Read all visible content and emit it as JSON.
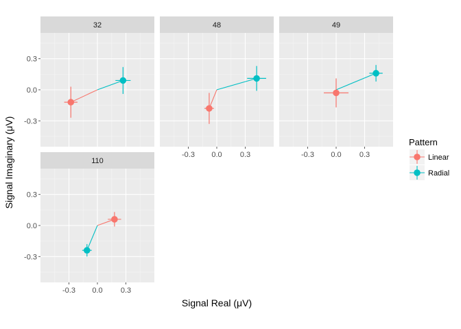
{
  "chart_data": {
    "type": "scatter",
    "xlabel": "Signal Real (μV)",
    "ylabel": "Signal Imaginary (μV)",
    "xlim": [
      -0.6,
      0.6
    ],
    "ylim": [
      -0.55,
      0.55
    ],
    "x_ticks": [
      -0.3,
      0.0,
      0.3
    ],
    "y_ticks": [
      -0.3,
      0.0,
      0.3
    ],
    "x_tick_labels": [
      "-0.3",
      "0.0",
      "0.3"
    ],
    "y_tick_labels": [
      "-0.3",
      "0.0",
      "0.3"
    ],
    "grid": true,
    "legend": {
      "title": "Pattern",
      "placement": "right",
      "entries": [
        {
          "name": "Linear",
          "color": "#F8766D"
        },
        {
          "name": "Radial",
          "color": "#00BFC4"
        }
      ]
    },
    "panels": [
      {
        "label": "32",
        "points": [
          {
            "series": "Linear",
            "x": -0.28,
            "y": -0.12,
            "x_err": 0.07,
            "y_err": 0.15
          },
          {
            "series": "Radial",
            "x": 0.27,
            "y": 0.09,
            "x_err": 0.08,
            "y_err": 0.13
          }
        ]
      },
      {
        "label": "48",
        "points": [
          {
            "series": "Linear",
            "x": -0.08,
            "y": -0.18,
            "x_err": 0.05,
            "y_err": 0.15
          },
          {
            "series": "Radial",
            "x": 0.42,
            "y": 0.11,
            "x_err": 0.1,
            "y_err": 0.12
          }
        ]
      },
      {
        "label": "49",
        "points": [
          {
            "series": "Linear",
            "x": 0.0,
            "y": -0.03,
            "x_err": 0.13,
            "y_err": 0.14
          },
          {
            "series": "Radial",
            "x": 0.42,
            "y": 0.16,
            "x_err": 0.07,
            "y_err": 0.08
          }
        ]
      },
      {
        "label": "110",
        "points": [
          {
            "series": "Linear",
            "x": 0.18,
            "y": 0.06,
            "x_err": 0.07,
            "y_err": 0.07
          },
          {
            "series": "Radial",
            "x": -0.11,
            "y": -0.24,
            "x_err": 0.05,
            "y_err": 0.06
          }
        ]
      }
    ]
  }
}
